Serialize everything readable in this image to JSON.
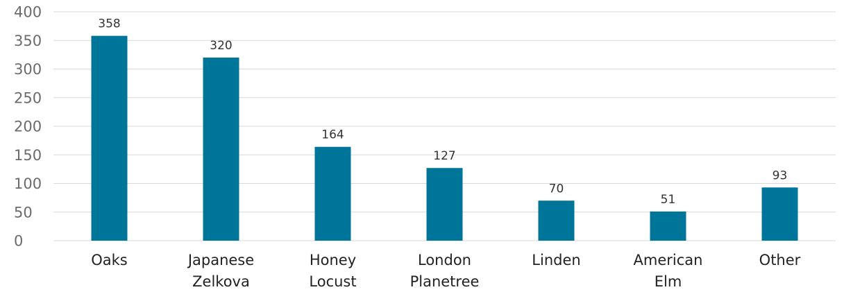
{
  "chart_data": {
    "type": "bar",
    "categories": [
      [
        "Oaks"
      ],
      [
        "Japanese",
        "Zelkova"
      ],
      [
        "Honey",
        "Locust"
      ],
      [
        "London",
        "Planetree"
      ],
      [
        "Linden"
      ],
      [
        "American",
        "Elm"
      ],
      [
        "Other"
      ]
    ],
    "values": [
      358,
      320,
      164,
      127,
      70,
      51,
      93
    ],
    "data_labels": [
      "358",
      "320",
      "164",
      "127",
      "70",
      "51",
      "93"
    ],
    "yticks": [
      "0",
      "50",
      "100",
      "150",
      "200",
      "250",
      "300",
      "350",
      "400"
    ],
    "ylim": [
      0,
      400
    ],
    "grid": true,
    "legend": "none",
    "bar_color": "#00759a"
  }
}
